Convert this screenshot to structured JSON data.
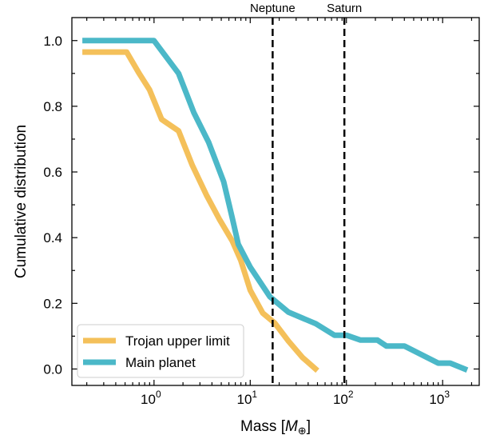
{
  "chart_data": {
    "type": "line",
    "title": "",
    "xlabel": "Mass [",
    "xlabel_symbol": "M",
    "xlabel_subscript": "⊕",
    "xlabel_close": "]",
    "ylabel": "Cumulative distribution",
    "xscale": "log",
    "xlim": [
      0.14,
      2400
    ],
    "ylim": [
      -0.05,
      1.07
    ],
    "grid": false,
    "legend_position": "lower-left",
    "yticks": [
      {
        "value": 0.0,
        "label": "0.0"
      },
      {
        "value": 0.2,
        "label": "0.2"
      },
      {
        "value": 0.4,
        "label": "0.4"
      },
      {
        "value": 0.6,
        "label": "0.6"
      },
      {
        "value": 0.8,
        "label": "0.8"
      },
      {
        "value": 1.0,
        "label": "1.0"
      }
    ],
    "xticks": [
      {
        "value": 1,
        "base": "10",
        "exp": "0"
      },
      {
        "value": 10,
        "base": "10",
        "exp": "1"
      },
      {
        "value": 100,
        "base": "10",
        "exp": "2"
      },
      {
        "value": 1000,
        "base": "10",
        "exp": "3"
      }
    ],
    "reference_lines": [
      {
        "label": "Neptune",
        "x": 17.1
      },
      {
        "label": "Saturn",
        "x": 95.2
      }
    ],
    "series": [
      {
        "name": "Trojan upper limit",
        "color": "#f4c05a",
        "points": [
          [
            0.18,
            0.965
          ],
          [
            0.52,
            0.965
          ],
          [
            0.7,
            0.9
          ],
          [
            0.9,
            0.85
          ],
          [
            1.2,
            0.76
          ],
          [
            1.8,
            0.725
          ],
          [
            2.5,
            0.62
          ],
          [
            3.5,
            0.53
          ],
          [
            4.8,
            0.455
          ],
          [
            6.5,
            0.39
          ],
          [
            8.0,
            0.33
          ],
          [
            10.0,
            0.24
          ],
          [
            13.5,
            0.17
          ],
          [
            18.0,
            0.14
          ],
          [
            25.0,
            0.085
          ],
          [
            35.0,
            0.035
          ],
          [
            50.0,
            -0.005
          ]
        ]
      },
      {
        "name": "Main planet",
        "color": "#4bb8c8",
        "points": [
          [
            0.18,
            1.0
          ],
          [
            1.0,
            1.0
          ],
          [
            1.8,
            0.9
          ],
          [
            2.6,
            0.78
          ],
          [
            3.7,
            0.69
          ],
          [
            5.3,
            0.57
          ],
          [
            6.5,
            0.46
          ],
          [
            7.5,
            0.38
          ],
          [
            10.0,
            0.31
          ],
          [
            16.0,
            0.22
          ],
          [
            25.0,
            0.173
          ],
          [
            48.0,
            0.138
          ],
          [
            75.0,
            0.103
          ],
          [
            100.0,
            0.103
          ],
          [
            140.0,
            0.088
          ],
          [
            210.0,
            0.088
          ],
          [
            260.0,
            0.07
          ],
          [
            400.0,
            0.07
          ],
          [
            900.0,
            0.018
          ],
          [
            1200.0,
            0.018
          ],
          [
            1800.0,
            -0.003
          ]
        ]
      }
    ]
  }
}
